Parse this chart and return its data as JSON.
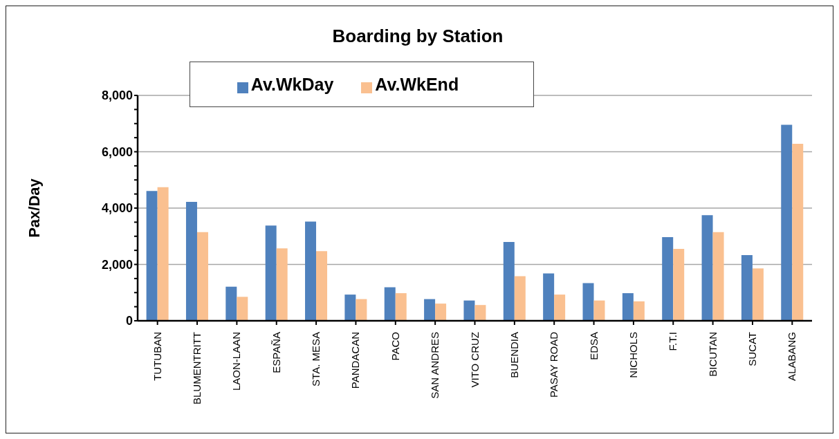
{
  "chart_data": {
    "type": "bar",
    "title": "Boarding by Station",
    "ylabel": "Pax/Day",
    "categories": [
      "TUTUBAN",
      "BLUMENTRITT",
      "LAON-LAAN",
      "ESPAÑA",
      "STA. MESA",
      "PANDACAN",
      "PACO",
      "SAN ANDRES",
      "VITO CRUZ",
      "BUENDIA",
      "PASAY ROAD",
      "EDSA",
      "NICHOLS",
      "F.T.I",
      "BICUTAN",
      "SUCAT",
      "ALABANG"
    ],
    "series": [
      {
        "name": "Av.WkDay",
        "color": "#4f81bd",
        "values": [
          4610,
          4220,
          1210,
          3380,
          3520,
          930,
          1190,
          770,
          720,
          2800,
          1680,
          1340,
          980,
          2970,
          3750,
          2330,
          6960
        ]
      },
      {
        "name": "Av.WkEnd",
        "color": "#fac090",
        "values": [
          4740,
          3150,
          850,
          2570,
          2470,
          770,
          980,
          610,
          560,
          1580,
          930,
          720,
          690,
          2550,
          3150,
          1860,
          6280
        ]
      }
    ],
    "ylim": [
      0,
      8000
    ],
    "yticks": [
      {
        "value": 0,
        "label": "0"
      },
      {
        "value": 500,
        "label": null
      },
      {
        "value": 1000,
        "label": null
      },
      {
        "value": 1500,
        "label": null
      },
      {
        "value": 2000,
        "label": "2,000"
      },
      {
        "value": 2500,
        "label": null
      },
      {
        "value": 3000,
        "label": null
      },
      {
        "value": 3500,
        "label": null
      },
      {
        "value": 4000,
        "label": "4,000"
      },
      {
        "value": 4500,
        "label": null
      },
      {
        "value": 5000,
        "label": null
      },
      {
        "value": 5500,
        "label": null
      },
      {
        "value": 6000,
        "label": "6,000"
      },
      {
        "value": 6500,
        "label": null
      },
      {
        "value": 7000,
        "label": null
      },
      {
        "value": 7500,
        "label": null
      },
      {
        "value": 8000,
        "label": "8,000"
      }
    ],
    "grid": "y",
    "legend": "top"
  }
}
